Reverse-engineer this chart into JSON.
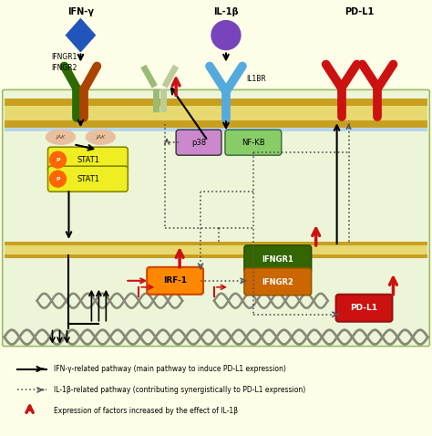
{
  "bg_color": "#fefee8",
  "cell_bg": "#edf5d8",
  "membrane_color_dark": "#c8a020",
  "membrane_color_light": "#e8d870",
  "membrane_color_blue": "#a0c4e0",
  "legend": [
    "IFN-γ-related pathway (main pathway to induce PD-L1 expression)",
    "IL-1β-related pathway (contributing synergistically to PD-L1 expression)",
    "Expression of factors increased by the effect of IL-1β"
  ],
  "ifn_label": "IFN-γ",
  "il1b_label": "IL-1β",
  "pdl1_label": "PD-L1",
  "ifngr_label1": "IFNGR1",
  "ifngr_label2": "IFNGR2",
  "il1br_label": "IL1BR",
  "jak_label": "JAK",
  "p38_label": "p38",
  "nfkb_label": "NF-KB",
  "stat1_label": "STAT1",
  "irf1_label": "IRF-1",
  "ifngr1_inner": "IFNGR1",
  "ifngr2_inner": "IFNGR2",
  "pdl1_inner": "PD-L1"
}
